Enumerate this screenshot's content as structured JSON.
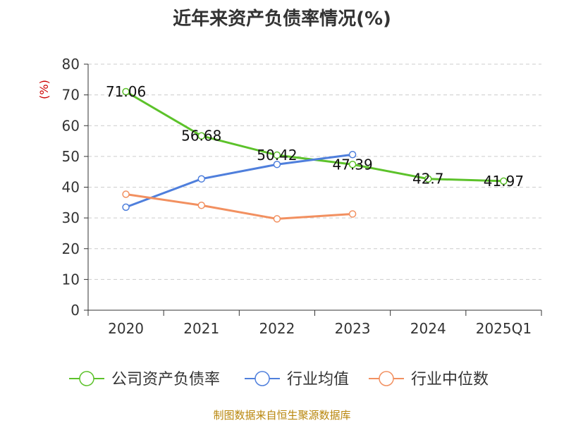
{
  "colors": {
    "company": "#5cc22a",
    "industry_avg": "#4f7fdc",
    "industry_median": "#f29060",
    "ylabel": "#cc0000",
    "footer": "#b8860b",
    "grid": "#cccccc",
    "axis": "#333333"
  },
  "footer": "制图数据来自恒生聚源数据库",
  "chart_data": {
    "type": "line",
    "title": "近年来资产负债率情况(%)",
    "ylabel": "(%)",
    "xlabel": "",
    "categories": [
      "2020",
      "2021",
      "2022",
      "2023",
      "2024",
      "2025Q1"
    ],
    "ylim": [
      0,
      80
    ],
    "yticks": [
      0,
      10,
      20,
      30,
      40,
      50,
      60,
      70,
      80
    ],
    "grid": true,
    "legend_position": "bottom",
    "series": [
      {
        "name": "公司资产负债率",
        "color_key": "company",
        "values": [
          71.06,
          56.68,
          50.42,
          47.39,
          42.7,
          41.97
        ],
        "labels": [
          "71.06",
          "56.68",
          "50.42",
          "47.39",
          "42.7",
          "41.97"
        ]
      },
      {
        "name": "行业均值",
        "color_key": "industry_avg",
        "values": [
          33.5,
          42.7,
          47.4,
          50.6,
          null,
          null
        ],
        "labels": null
      },
      {
        "name": "行业中位数",
        "color_key": "industry_median",
        "values": [
          37.7,
          34.1,
          29.7,
          31.3,
          null,
          null
        ],
        "labels": null
      }
    ]
  }
}
